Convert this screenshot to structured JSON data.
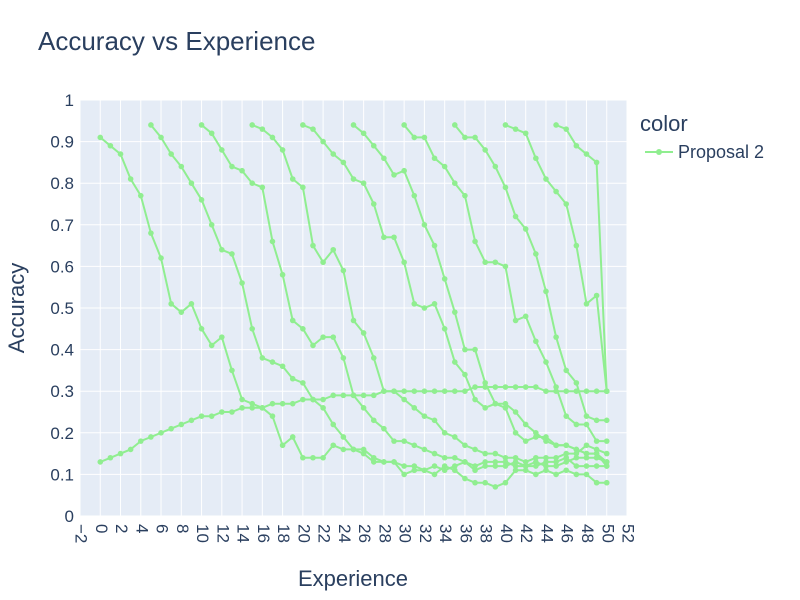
{
  "chart_data": {
    "type": "line",
    "title": "Accuracy vs Experience",
    "xlabel": "Experience",
    "ylabel": "Accuracy",
    "xlim": [
      -2,
      52
    ],
    "ylim": [
      0,
      1
    ],
    "x_ticks": [
      -2,
      0,
      2,
      4,
      6,
      8,
      10,
      12,
      14,
      16,
      18,
      20,
      22,
      24,
      26,
      28,
      30,
      32,
      34,
      36,
      38,
      40,
      42,
      44,
      46,
      48,
      50,
      52
    ],
    "x_tick_labels": [
      "−2",
      "0",
      "2",
      "4",
      "6",
      "8",
      "10",
      "12",
      "14",
      "16",
      "18",
      "20",
      "22",
      "24",
      "26",
      "28",
      "30",
      "32",
      "34",
      "36",
      "38",
      "40",
      "42",
      "44",
      "46",
      "48",
      "50",
      "52"
    ],
    "y_ticks": [
      0,
      0.1,
      0.2,
      0.3,
      0.4,
      0.5,
      0.6,
      0.7,
      0.8,
      0.9,
      1
    ],
    "y_tick_labels": [
      "0",
      "0.1",
      "0.2",
      "0.3",
      "0.4",
      "0.5",
      "0.6",
      "0.7",
      "0.8",
      "0.9",
      "1"
    ],
    "grid": true,
    "legend_position": "right",
    "legend": {
      "title": "color",
      "entries": [
        "Proposal 2"
      ]
    },
    "line_color": "#90ee90",
    "plot_bg": "#e5ecf6",
    "series": [
      {
        "name": "Proposal 2",
        "x": [
          0,
          1,
          2,
          3,
          4,
          5,
          6,
          7,
          8,
          9,
          10,
          11,
          12,
          13,
          14,
          15,
          16,
          17,
          18,
          19,
          20,
          21,
          22,
          23,
          24,
          25,
          26,
          27,
          28,
          29,
          30,
          31,
          32,
          33,
          34,
          35,
          36,
          37,
          38,
          39,
          40,
          41,
          42,
          43,
          44,
          45,
          46,
          47,
          48,
          49,
          50
        ],
        "y": [
          0.91,
          0.89,
          0.87,
          0.81,
          0.77,
          0.68,
          0.62,
          0.51,
          0.49,
          0.51,
          0.45,
          0.41,
          0.43,
          0.35,
          0.28,
          0.27,
          0.26,
          0.24,
          0.17,
          0.19,
          0.14,
          0.14,
          0.14,
          0.17,
          0.16,
          0.16,
          0.15,
          0.13,
          0.13,
          0.13,
          0.1,
          0.11,
          0.11,
          0.1,
          0.12,
          0.11,
          0.09,
          0.08,
          0.08,
          0.07,
          0.08,
          0.11,
          0.11,
          0.1,
          0.11,
          0.1,
          0.11,
          0.1,
          0.1,
          0.08,
          0.08
        ]
      },
      {
        "name": "Proposal 2",
        "x": [
          5,
          6,
          7,
          8,
          9,
          10,
          11,
          12,
          13,
          14,
          15,
          16,
          17,
          18,
          19,
          20,
          21,
          22,
          23,
          24,
          25,
          26,
          27,
          28,
          29,
          30,
          31,
          32,
          33,
          34,
          35,
          36,
          37,
          38,
          39,
          40,
          41,
          42,
          43,
          44,
          45,
          46,
          47,
          48,
          49,
          50
        ],
        "y": [
          0.94,
          0.91,
          0.87,
          0.84,
          0.8,
          0.76,
          0.7,
          0.64,
          0.63,
          0.56,
          0.45,
          0.38,
          0.37,
          0.36,
          0.33,
          0.32,
          0.28,
          0.26,
          0.22,
          0.19,
          0.16,
          0.16,
          0.14,
          0.13,
          0.13,
          0.12,
          0.12,
          0.11,
          0.12,
          0.11,
          0.12,
          0.13,
          0.11,
          0.12,
          0.12,
          0.12,
          0.13,
          0.12,
          0.12,
          0.13,
          0.13,
          0.14,
          0.12,
          0.12,
          0.12,
          0.12
        ]
      },
      {
        "name": "Proposal 2",
        "x": [
          10,
          11,
          12,
          13,
          14,
          15,
          16,
          17,
          18,
          19,
          20,
          21,
          22,
          23,
          24,
          25,
          26,
          27,
          28,
          29,
          30,
          31,
          32,
          33,
          34,
          35,
          36,
          37,
          38,
          39,
          40,
          41,
          42,
          43,
          44,
          45,
          46,
          47,
          48,
          49,
          50
        ],
        "y": [
          0.94,
          0.92,
          0.88,
          0.84,
          0.83,
          0.8,
          0.79,
          0.66,
          0.58,
          0.47,
          0.45,
          0.41,
          0.43,
          0.43,
          0.38,
          0.29,
          0.26,
          0.23,
          0.21,
          0.18,
          0.18,
          0.17,
          0.16,
          0.15,
          0.14,
          0.14,
          0.13,
          0.12,
          0.13,
          0.13,
          0.13,
          0.12,
          0.12,
          0.13,
          0.12,
          0.12,
          0.13,
          0.14,
          0.14,
          0.14,
          0.13
        ]
      },
      {
        "name": "Proposal 2",
        "x": [
          15,
          16,
          17,
          18,
          19,
          20,
          21,
          22,
          23,
          24,
          25,
          26,
          27,
          28,
          29,
          30,
          31,
          32,
          33,
          34,
          35,
          36,
          37,
          38,
          39,
          40,
          41,
          42,
          43,
          44,
          45,
          46,
          47,
          48,
          49,
          50
        ],
        "y": [
          0.94,
          0.93,
          0.91,
          0.88,
          0.81,
          0.79,
          0.65,
          0.61,
          0.64,
          0.59,
          0.47,
          0.44,
          0.38,
          0.3,
          0.3,
          0.28,
          0.26,
          0.24,
          0.23,
          0.2,
          0.19,
          0.17,
          0.16,
          0.15,
          0.15,
          0.14,
          0.14,
          0.13,
          0.14,
          0.14,
          0.14,
          0.15,
          0.15,
          0.17,
          0.16,
          0.15
        ]
      },
      {
        "name": "Proposal 2",
        "x": [
          20,
          21,
          22,
          23,
          24,
          25,
          26,
          27,
          28,
          29,
          30,
          31,
          32,
          33,
          34,
          35,
          36,
          37,
          38,
          39,
          40,
          41,
          42,
          43,
          44,
          45,
          46,
          47,
          48,
          49,
          50
        ],
        "y": [
          0.94,
          0.93,
          0.9,
          0.87,
          0.85,
          0.81,
          0.8,
          0.75,
          0.67,
          0.67,
          0.61,
          0.51,
          0.5,
          0.51,
          0.45,
          0.37,
          0.34,
          0.28,
          0.26,
          0.27,
          0.26,
          0.2,
          0.18,
          0.19,
          0.19,
          0.17,
          0.17,
          0.16,
          0.15,
          0.15,
          0.13
        ]
      },
      {
        "name": "Proposal 2",
        "x": [
          25,
          26,
          27,
          28,
          29,
          30,
          31,
          32,
          33,
          34,
          35,
          36,
          37,
          38,
          39,
          40,
          41,
          42,
          43,
          44,
          45,
          46,
          47,
          48,
          49,
          50
        ],
        "y": [
          0.94,
          0.92,
          0.89,
          0.86,
          0.82,
          0.83,
          0.77,
          0.7,
          0.65,
          0.57,
          0.49,
          0.4,
          0.4,
          0.32,
          0.27,
          0.27,
          0.25,
          0.22,
          0.2,
          0.18,
          0.17,
          0.17,
          0.16,
          0.15,
          0.15,
          0.12
        ]
      },
      {
        "name": "Proposal 2",
        "x": [
          30,
          31,
          32,
          33,
          34,
          35,
          36,
          37,
          38,
          39,
          40,
          41,
          42,
          43,
          44,
          45,
          46,
          47,
          48,
          49,
          50
        ],
        "y": [
          0.94,
          0.91,
          0.91,
          0.86,
          0.84,
          0.8,
          0.77,
          0.66,
          0.61,
          0.61,
          0.6,
          0.47,
          0.48,
          0.42,
          0.37,
          0.31,
          0.24,
          0.22,
          0.22,
          0.18,
          0.18
        ]
      },
      {
        "name": "Proposal 2",
        "x": [
          35,
          36,
          37,
          38,
          39,
          40,
          41,
          42,
          43,
          44,
          45,
          46,
          47,
          48,
          49,
          50
        ],
        "y": [
          0.94,
          0.91,
          0.91,
          0.88,
          0.84,
          0.79,
          0.72,
          0.69,
          0.63,
          0.54,
          0.43,
          0.35,
          0.32,
          0.24,
          0.23,
          0.23
        ]
      },
      {
        "name": "Proposal 2",
        "x": [
          40,
          41,
          42,
          43,
          44,
          45,
          46,
          47,
          48,
          49,
          50
        ],
        "y": [
          0.94,
          0.93,
          0.92,
          0.86,
          0.81,
          0.78,
          0.75,
          0.65,
          0.51,
          0.53,
          0.3
        ]
      },
      {
        "name": "Proposal 2",
        "x": [
          45,
          46,
          47,
          48,
          49,
          50
        ],
        "y": [
          0.94,
          0.93,
          0.89,
          0.87,
          0.85,
          0.3
        ]
      },
      {
        "name": "Proposal 2",
        "x": [
          0,
          1,
          2,
          3,
          4,
          5,
          6,
          7,
          8,
          9,
          10,
          11,
          12,
          13,
          14,
          15,
          16,
          17,
          18,
          19,
          20,
          21,
          22,
          23,
          24,
          25,
          26,
          27,
          28,
          29,
          30,
          31,
          32,
          33,
          34,
          35,
          36,
          37,
          38,
          39,
          40,
          41,
          42,
          43,
          44,
          45,
          46,
          47,
          48,
          49,
          50
        ],
        "y": [
          0.13,
          0.14,
          0.15,
          0.16,
          0.18,
          0.19,
          0.2,
          0.21,
          0.22,
          0.23,
          0.24,
          0.24,
          0.25,
          0.25,
          0.26,
          0.26,
          0.26,
          0.27,
          0.27,
          0.27,
          0.28,
          0.28,
          0.28,
          0.29,
          0.29,
          0.29,
          0.29,
          0.29,
          0.3,
          0.3,
          0.3,
          0.3,
          0.3,
          0.3,
          0.3,
          0.3,
          0.3,
          0.31,
          0.31,
          0.31,
          0.31,
          0.31,
          0.31,
          0.31,
          0.3,
          0.3,
          0.3,
          0.3,
          0.3,
          0.3,
          0.3
        ]
      }
    ]
  }
}
